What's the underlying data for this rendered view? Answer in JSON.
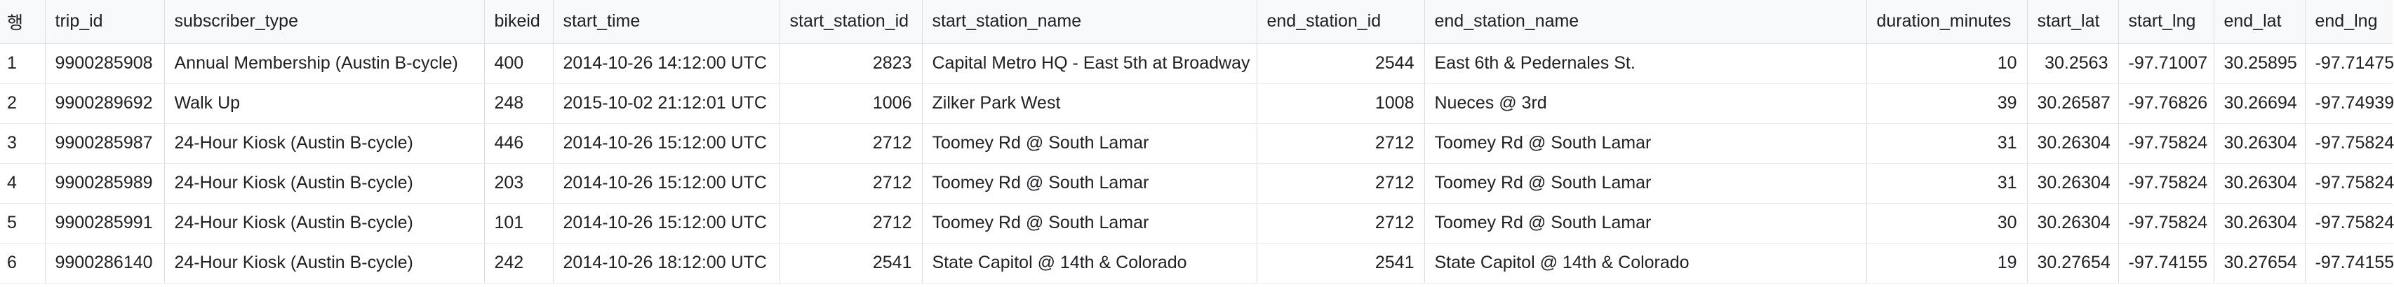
{
  "columns": [
    {
      "key": "row",
      "label": "행"
    },
    {
      "key": "trip_id",
      "label": "trip_id"
    },
    {
      "key": "subscriber_type",
      "label": "subscriber_type"
    },
    {
      "key": "bikeid",
      "label": "bikeid"
    },
    {
      "key": "start_time",
      "label": "start_time"
    },
    {
      "key": "start_station_id",
      "label": "start_station_id"
    },
    {
      "key": "start_station_name",
      "label": "start_station_name"
    },
    {
      "key": "end_station_id",
      "label": "end_station_id"
    },
    {
      "key": "end_station_name",
      "label": "end_station_name"
    },
    {
      "key": "duration_minutes",
      "label": "duration_minutes"
    },
    {
      "key": "start_lat",
      "label": "start_lat"
    },
    {
      "key": "start_lng",
      "label": "start_lng"
    },
    {
      "key": "end_lat",
      "label": "end_lat"
    },
    {
      "key": "end_lng",
      "label": "end_lng"
    }
  ],
  "rows": [
    [
      "1",
      "9900285908",
      "Annual Membership (Austin B-cycle)",
      "400",
      "2014-10-26 14:12:00 UTC",
      "2823",
      "Capital Metro HQ - East 5th at Broadway",
      "2544",
      "East 6th & Pedernales St.",
      "10",
      "30.2563",
      "-97.71007",
      "30.25895",
      "-97.71475"
    ],
    [
      "2",
      "9900289692",
      "Walk Up",
      "248",
      "2015-10-02 21:12:01 UTC",
      "1006",
      "Zilker Park West",
      "1008",
      "Nueces @ 3rd",
      "39",
      "30.26587",
      "-97.76826",
      "30.26694",
      "-97.74939"
    ],
    [
      "3",
      "9900285987",
      "24-Hour Kiosk (Austin B-cycle)",
      "446",
      "2014-10-26 15:12:00 UTC",
      "2712",
      "Toomey Rd @ South Lamar",
      "2712",
      "Toomey Rd @ South Lamar",
      "31",
      "30.26304",
      "-97.75824",
      "30.26304",
      "-97.75824"
    ],
    [
      "4",
      "9900285989",
      "24-Hour Kiosk (Austin B-cycle)",
      "203",
      "2014-10-26 15:12:00 UTC",
      "2712",
      "Toomey Rd @ South Lamar",
      "2712",
      "Toomey Rd @ South Lamar",
      "31",
      "30.26304",
      "-97.75824",
      "30.26304",
      "-97.75824"
    ],
    [
      "5",
      "9900285991",
      "24-Hour Kiosk (Austin B-cycle)",
      "101",
      "2014-10-26 15:12:00 UTC",
      "2712",
      "Toomey Rd @ South Lamar",
      "2712",
      "Toomey Rd @ South Lamar",
      "30",
      "30.26304",
      "-97.75824",
      "30.26304",
      "-97.75824"
    ],
    [
      "6",
      "9900286140",
      "24-Hour Kiosk (Austin B-cycle)",
      "242",
      "2014-10-26 18:12:00 UTC",
      "2541",
      "State Capitol @ 14th & Colorado",
      "2541",
      "State Capitol @ 14th & Colorado",
      "19",
      "30.27654",
      "-97.74155",
      "30.27654",
      "-97.74155"
    ]
  ]
}
